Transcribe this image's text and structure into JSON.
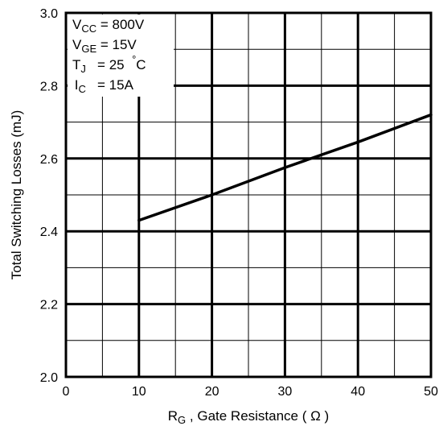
{
  "chart_data": {
    "type": "line",
    "xlabel_main": "R",
    "xlabel_sub": "G",
    "xlabel_rest": " , Gate Resistance ( Ω )",
    "ylabel": "Total Switching Losses (mJ)",
    "xlim": [
      0,
      50
    ],
    "ylim": [
      2.0,
      3.0
    ],
    "x_ticks": [
      "0",
      "10",
      "20",
      "30",
      "40",
      "50"
    ],
    "y_ticks": [
      "2.0",
      "2.2",
      "2.4",
      "2.6",
      "2.8",
      "3.0"
    ],
    "grid": true,
    "series": [
      {
        "x": [
          10,
          20,
          30,
          40,
          50
        ],
        "y": [
          2.43,
          2.5,
          2.575,
          2.645,
          2.72
        ]
      }
    ],
    "annotations": {
      "vcc": {
        "main": "V",
        "sub": "CC",
        "rest": " = 800V"
      },
      "vge": {
        "main": "V",
        "sub": "GE",
        "rest": " = 15V"
      },
      "tj": {
        "main": "T",
        "sub": "J",
        "rest": "   = 25  ",
        "deg": "°",
        "unit": "C"
      },
      "ic": {
        "main": " I",
        "sub": "C",
        "rest": "   = 15A"
      }
    }
  }
}
